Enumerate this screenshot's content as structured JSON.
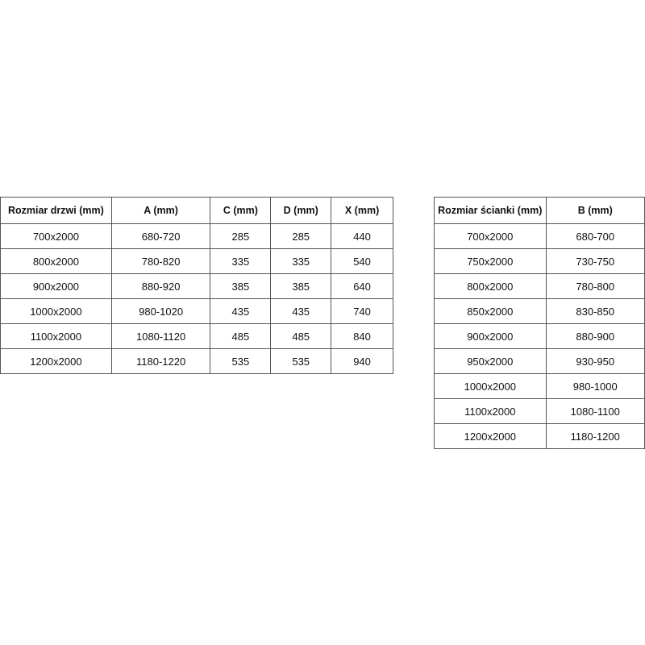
{
  "door_table": {
    "headers": [
      "Rozmiar drzwi (mm)",
      "A (mm)",
      "C (mm)",
      "D (mm)",
      "X (mm)"
    ],
    "rows": [
      [
        "700x2000",
        "680-720",
        "285",
        "285",
        "440"
      ],
      [
        "800x2000",
        "780-820",
        "335",
        "335",
        "540"
      ],
      [
        "900x2000",
        "880-920",
        "385",
        "385",
        "640"
      ],
      [
        "1000x2000",
        "980-1020",
        "435",
        "435",
        "740"
      ],
      [
        "1100x2000",
        "1080-1120",
        "485",
        "485",
        "840"
      ],
      [
        "1200x2000",
        "1180-1220",
        "535",
        "535",
        "940"
      ]
    ]
  },
  "wall_table": {
    "headers": [
      "Rozmiar ścianki (mm)",
      "B (mm)"
    ],
    "rows": [
      [
        "700x2000",
        "680-700"
      ],
      [
        "750x2000",
        "730-750"
      ],
      [
        "800x2000",
        "780-800"
      ],
      [
        "850x2000",
        "830-850"
      ],
      [
        "900x2000",
        "880-900"
      ],
      [
        "950x2000",
        "930-950"
      ],
      [
        "1000x2000",
        "980-1000"
      ],
      [
        "1100x2000",
        "1080-1100"
      ],
      [
        "1200x2000",
        "1180-1200"
      ]
    ]
  }
}
